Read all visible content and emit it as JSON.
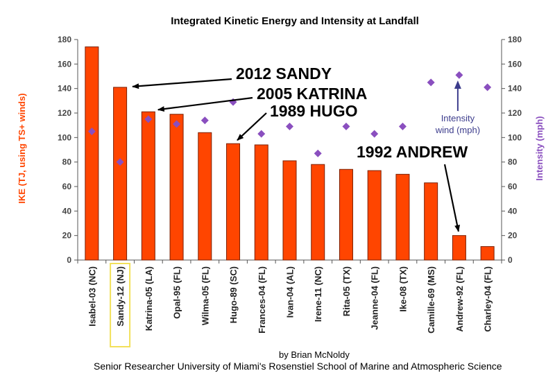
{
  "chart_data": {
    "type": "bar",
    "title": "Integrated Kinetic Energy and Intensity at Landfall",
    "ylabel_left": "IKE (TJ, using TS+ winds)",
    "ylabel_right": "Intensity (mph)",
    "ylim": [
      0,
      180
    ],
    "yticks": [
      0,
      20,
      40,
      60,
      80,
      100,
      120,
      140,
      160,
      180
    ],
    "categories": [
      "Isabel-03 (NC)",
      "Sandy-12 (NJ)",
      "Katrina-05 (LA)",
      "Opal-95 (FL)",
      "Wilma-05 (FL)",
      "Hugo-89 (SC)",
      "Frances-04 (FL)",
      "Ivan-04 (AL)",
      "Irene-11 (NC)",
      "Rita-05 (TX)",
      "Jeanne-04 (FL)",
      "Ike-08 (TX)",
      "Camille-69 (MS)",
      "Andrew-92 (FL)",
      "Charley-04 (FL)"
    ],
    "highlighted_category": "Sandy-12 (NJ)",
    "series": [
      {
        "name": "IKE",
        "kind": "bar",
        "axis": "left",
        "values": [
          174,
          141,
          121,
          119,
          104,
          95,
          94,
          81,
          78,
          74,
          73,
          70,
          63,
          20,
          11
        ]
      },
      {
        "name": "Intensity",
        "kind": "marker",
        "axis": "right",
        "values": [
          105,
          80,
          115,
          111,
          114,
          129,
          103,
          109,
          87,
          109,
          103,
          109,
          145,
          151,
          141
        ]
      }
    ],
    "annotations": [
      {
        "text": "2012 SANDY",
        "target": "Sandy-12 (NJ)"
      },
      {
        "text": "2005 KATRINA",
        "target": "Katrina-05 (LA)"
      },
      {
        "text": "1989 HUGO",
        "target": "Hugo-89 (SC)"
      },
      {
        "text": "1992 ANDREW",
        "target": "Andrew-92 (FL)"
      }
    ],
    "marker_note": {
      "line1": "Intensity",
      "line2": "wind (mph)",
      "target": "Andrew-92 (FL)"
    },
    "colors": {
      "bar": "#ff4500",
      "bar_edge": "#7a1e00",
      "marker": "#8a4fbf",
      "left_axis_label": "#ff4500",
      "right_axis_label": "#8a4fbf",
      "note": "#3c3c8c",
      "highlight_box": "#f2e05a",
      "axis": "#555555"
    }
  },
  "credits": {
    "line1": "by Brian McNoldy",
    "line2": "Senior Researcher University of Miami's Rosenstiel School of Marine and Atmospheric Science"
  }
}
